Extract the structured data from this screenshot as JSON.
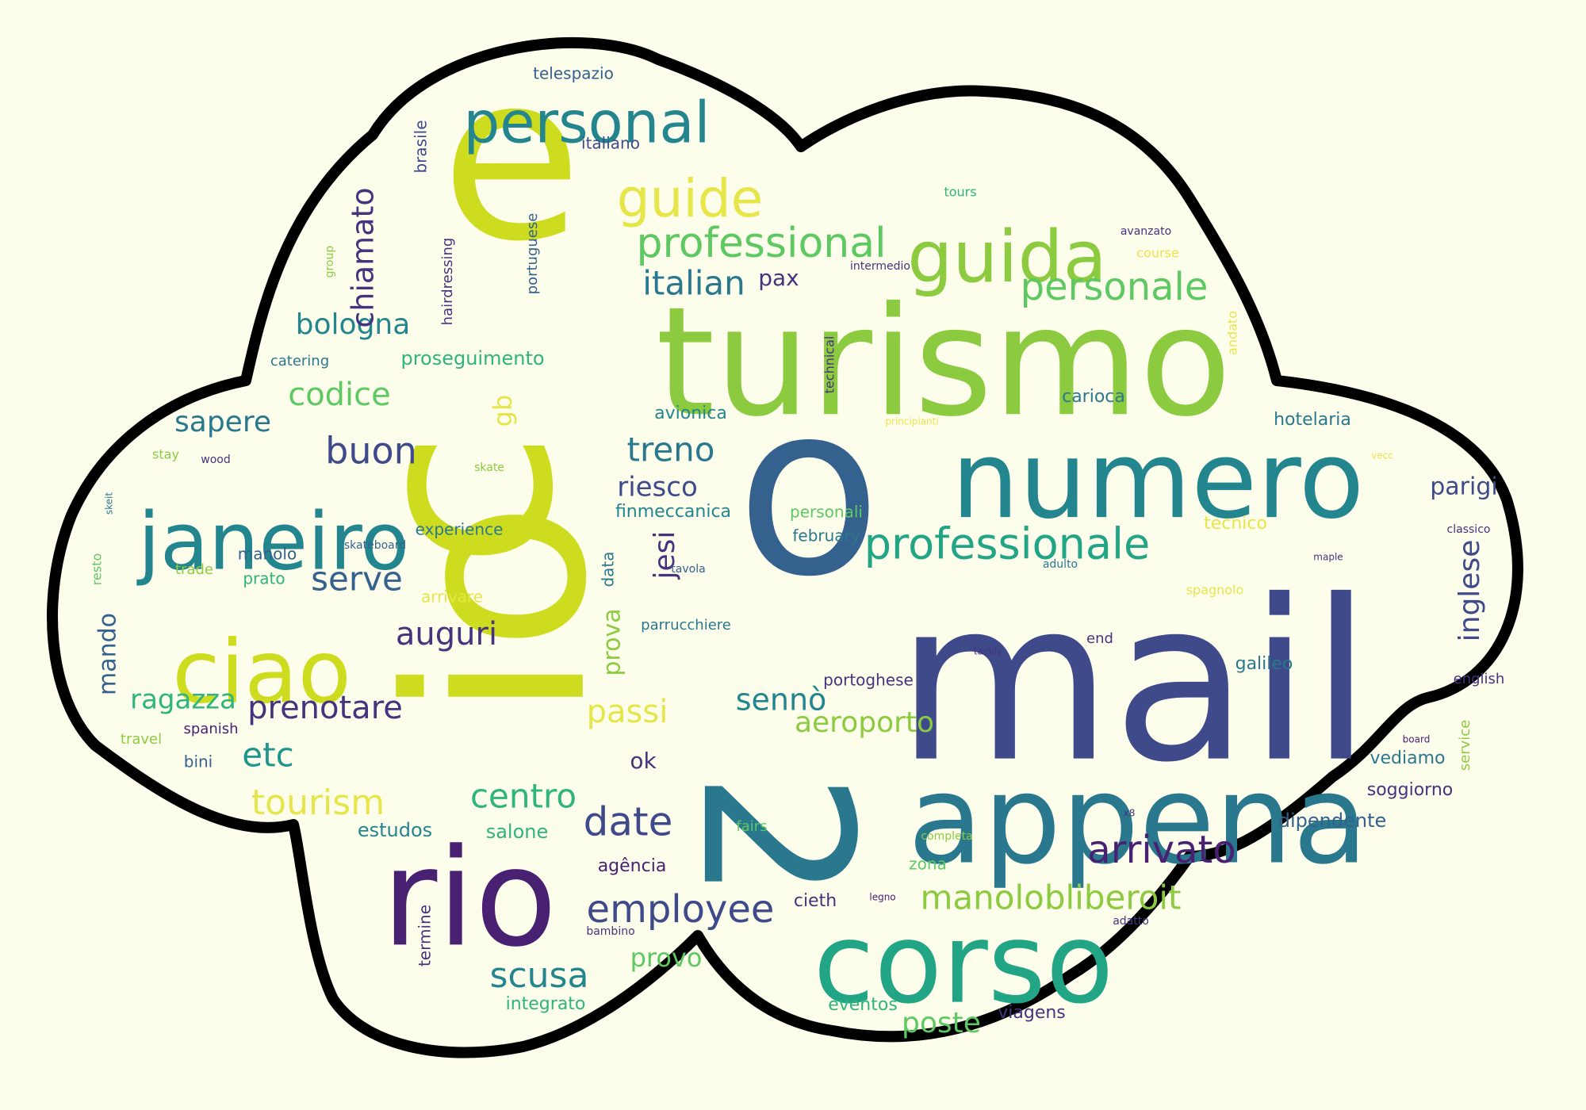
{
  "cloud": {
    "background": "#fdfdec",
    "shape_fill": "#fdfdec",
    "outline_color": "#000000",
    "palette": {
      "lime": "#cddc1e",
      "yellow": "#e6e64a",
      "green": "#8ccb3f",
      "leaf": "#5ec962",
      "emerald": "#2fb47c",
      "jade": "#21a585",
      "teal": "#1f968b",
      "petrol": "#23858e",
      "ocean": "#2a788e",
      "steel": "#34618d",
      "blue": "#3e4a89",
      "indigo": "#46337e",
      "purple": "#482173"
    },
    "words": [
      {
        "text": "io",
        "color": "#cddc1e"
      },
      {
        "text": "mail",
        "color": "#3e4a89"
      },
      {
        "text": "turismo",
        "color": "#8ccb3f"
      },
      {
        "text": "e",
        "color": "#cddc1e"
      },
      {
        "text": "o",
        "color": "#34618d"
      },
      {
        "text": "c",
        "color": "#cddc1e"
      },
      {
        "text": "numero",
        "color": "#23858e"
      },
      {
        "text": "appena",
        "color": "#2a788e"
      },
      {
        "text": "rio",
        "color": "#482173"
      },
      {
        "text": "corso",
        "color": "#21a585"
      },
      {
        "text": "ciao",
        "color": "#cddc1e"
      },
      {
        "text": "janeiro",
        "color": "#23858e"
      },
      {
        "text": "guida",
        "color": "#8ccb3f"
      },
      {
        "text": "personal",
        "color": "#23858e"
      },
      {
        "text": "2",
        "color": "#2a788e"
      },
      {
        "text": "guide",
        "color": "#e6e64a"
      },
      {
        "text": "professional",
        "color": "#5ec962"
      },
      {
        "text": "professionale",
        "color": "#21a585"
      },
      {
        "text": "personale",
        "color": "#5ec962"
      },
      {
        "text": "arrivato",
        "color": "#482173"
      },
      {
        "text": "manolobliberoit",
        "color": "#8ccb3f"
      },
      {
        "text": "employee",
        "color": "#3e4a89"
      },
      {
        "text": "date",
        "color": "#3e4a89"
      },
      {
        "text": "centro",
        "color": "#2fb47c"
      },
      {
        "text": "tourism",
        "color": "#e6e64a"
      },
      {
        "text": "prenotare",
        "color": "#46337e"
      },
      {
        "text": "auguri",
        "color": "#46337e"
      },
      {
        "text": "serve",
        "color": "#34618d"
      },
      {
        "text": "buon",
        "color": "#3e4a89"
      },
      {
        "text": "codice",
        "color": "#5ec962"
      },
      {
        "text": "bologna",
        "color": "#23858e"
      },
      {
        "text": "chiamato",
        "color": "#46337e"
      },
      {
        "text": "italian",
        "color": "#2a788e"
      },
      {
        "text": "treno",
        "color": "#2a788e"
      },
      {
        "text": "riesco",
        "color": "#3e4a89"
      },
      {
        "text": "sapere",
        "color": "#2a788e"
      },
      {
        "text": "aeroporto",
        "color": "#8ccb3f"
      },
      {
        "text": "scusa",
        "color": "#23858e"
      },
      {
        "text": "poste",
        "color": "#5ec962"
      },
      {
        "text": "passi",
        "color": "#e6e64a"
      },
      {
        "text": "sennò",
        "color": "#23858e"
      },
      {
        "text": "ragazza",
        "color": "#2fb47c"
      },
      {
        "text": "etc",
        "color": "#1f968b"
      },
      {
        "text": "jesi",
        "color": "#46337e"
      },
      {
        "text": "inglese",
        "color": "#3e4a89"
      },
      {
        "text": "parigi",
        "color": "#3e4a89"
      },
      {
        "text": "prova",
        "color": "#8ccb3f"
      },
      {
        "text": "provo",
        "color": "#5ec962"
      },
      {
        "text": "mando",
        "color": "#34618d"
      },
      {
        "text": "proseguimento",
        "color": "#2fb47c"
      },
      {
        "text": "avionica",
        "color": "#23858e"
      },
      {
        "text": "carioca",
        "color": "#2a788e"
      },
      {
        "text": "hotelaria",
        "color": "#2a788e"
      },
      {
        "text": "finmeccanica",
        "color": "#23858e"
      },
      {
        "text": "experience",
        "color": "#2a788e"
      },
      {
        "text": "personali",
        "color": "#5ec962"
      },
      {
        "text": "february",
        "color": "#2a788e"
      },
      {
        "text": "tecnico",
        "color": "#e6e64a"
      },
      {
        "text": "pax",
        "color": "#46337e"
      },
      {
        "text": "ok",
        "color": "#46337e"
      },
      {
        "text": "vediamo",
        "color": "#2a788e"
      },
      {
        "text": "soggiorno",
        "color": "#46337e"
      },
      {
        "text": "dipendente",
        "color": "#34618d"
      },
      {
        "text": "galileo",
        "color": "#2a788e"
      },
      {
        "text": "portoghese",
        "color": "#46337e"
      },
      {
        "text": "parrucchiere",
        "color": "#2a788e"
      },
      {
        "text": "estudos",
        "color": "#23858e"
      },
      {
        "text": "salone",
        "color": "#2fb47c"
      },
      {
        "text": "agência",
        "color": "#482173"
      },
      {
        "text": "zona",
        "color": "#5ec962"
      },
      {
        "text": "cieth",
        "color": "#46337e"
      },
      {
        "text": "integrato",
        "color": "#2fb47c"
      },
      {
        "text": "eventos",
        "color": "#2fb47c"
      },
      {
        "text": "viagens",
        "color": "#46337e"
      },
      {
        "text": "termine",
        "color": "#46337e"
      },
      {
        "text": "bambino",
        "color": "#46337e"
      },
      {
        "text": "legno",
        "color": "#482173"
      },
      {
        "text": "adatto",
        "color": "#46337e"
      },
      {
        "text": "completa",
        "color": "#8ccb3f"
      },
      {
        "text": "fairs",
        "color": "#5ec962"
      },
      {
        "text": "x8",
        "color": "#46337e"
      },
      {
        "text": "spanish",
        "color": "#482173"
      },
      {
        "text": "bini",
        "color": "#34618d"
      },
      {
        "text": "travel",
        "color": "#8ccb3f"
      },
      {
        "text": "resto",
        "color": "#5ec962"
      },
      {
        "text": "prato",
        "color": "#2fb47c"
      },
      {
        "text": "manolo",
        "color": "#34618d"
      },
      {
        "text": "trade",
        "color": "#8ccb3f"
      },
      {
        "text": "skateboard",
        "color": "#34618d"
      },
      {
        "text": "arrivare",
        "color": "#e6e64a"
      },
      {
        "text": "data",
        "color": "#2a788e"
      },
      {
        "text": "tavola",
        "color": "#34618d"
      },
      {
        "text": "skeit",
        "color": "#2a788e"
      },
      {
        "text": "stay",
        "color": "#8ccb3f"
      },
      {
        "text": "wood",
        "color": "#46337e"
      },
      {
        "text": "skate",
        "color": "#8ccb3f"
      },
      {
        "text": "gb",
        "color": "#e6e64a"
      },
      {
        "text": "catering",
        "color": "#2a788e"
      },
      {
        "text": "hairdressing",
        "color": "#46337e"
      },
      {
        "text": "portuguese",
        "color": "#34618d"
      },
      {
        "text": "brasile",
        "color": "#3e4a89"
      },
      {
        "text": "group",
        "color": "#8ccb3f"
      },
      {
        "text": "telespazio",
        "color": "#34618d"
      },
      {
        "text": "italiano",
        "color": "#3e4a89"
      },
      {
        "text": "tours",
        "color": "#2fb47c"
      },
      {
        "text": "avanzato",
        "color": "#46337e"
      },
      {
        "text": "course",
        "color": "#e6e64a"
      },
      {
        "text": "intermedio",
        "color": "#46337e"
      },
      {
        "text": "technical",
        "color": "#46337e"
      },
      {
        "text": "andato",
        "color": "#e6e64a"
      },
      {
        "text": "principianti",
        "color": "#e6e64a"
      },
      {
        "text": "vecc",
        "color": "#e6e64a"
      },
      {
        "text": "classico",
        "color": "#46337e"
      },
      {
        "text": "maple",
        "color": "#46337e"
      },
      {
        "text": "adulto",
        "color": "#2a788e"
      },
      {
        "text": "spagnolo",
        "color": "#e6e64a"
      },
      {
        "text": "end",
        "color": "#46337e"
      },
      {
        "text": "tackly",
        "color": "#46337e"
      },
      {
        "text": "english",
        "color": "#46337e"
      },
      {
        "text": "board",
        "color": "#482173"
      },
      {
        "text": "service",
        "color": "#8ccb3f"
      }
    ]
  }
}
